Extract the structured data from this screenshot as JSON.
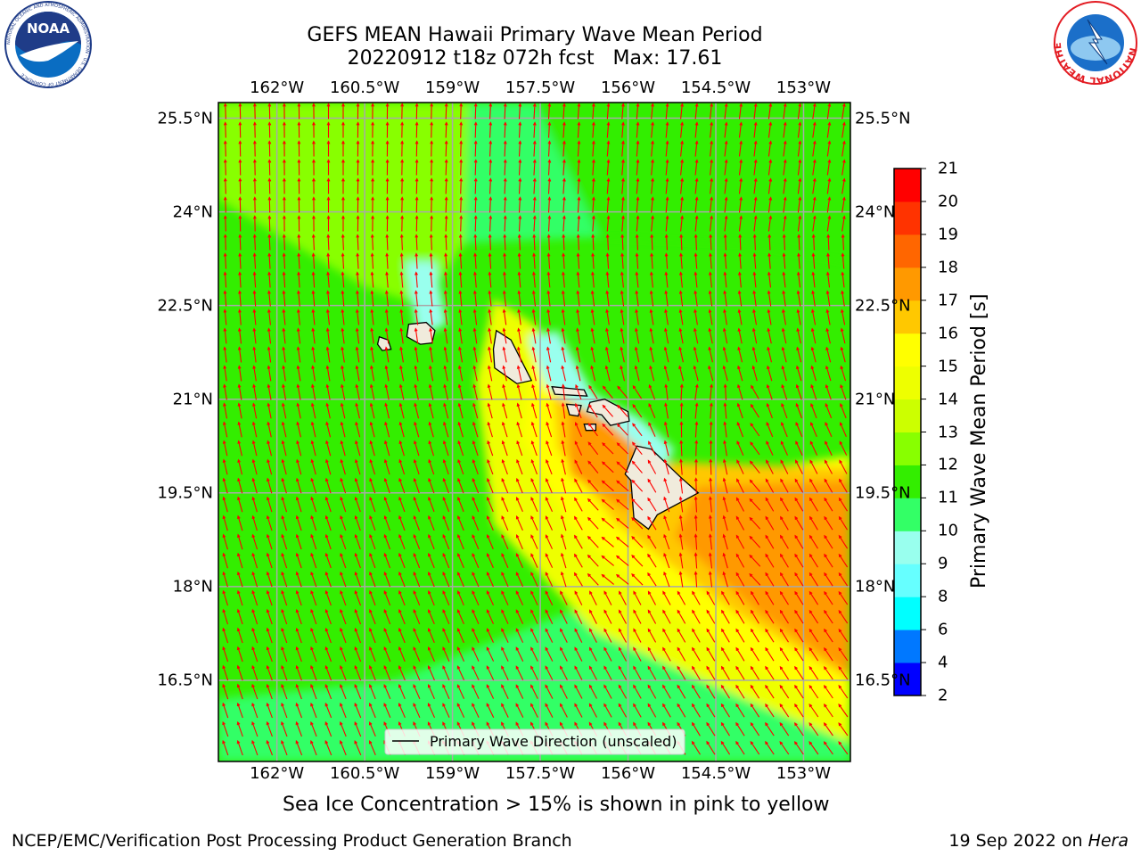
{
  "header": {
    "title_line1": "GEFS MEAN Hawaii Primary Wave Mean Period",
    "title_line2": "20220912 t18z 072h fcst   Max: 17.61"
  },
  "logos": {
    "left": "noara-logo",
    "left_text": "NOAA",
    "left_ring_text": "NATIONAL OCEANIC AND ATMOSPHERIC ADMINISTRATION · U.S. DEPARTMENT OF COMMERCE",
    "right": "nws-logo",
    "right_ring_text": "NATIONAL WEATHER SERVICE"
  },
  "map": {
    "lon_ticks": [
      "162°W",
      "160.5°W",
      "159°W",
      "157.5°W",
      "156°W",
      "154.5°W",
      "153°W"
    ],
    "lon_values": [
      -162,
      -160.5,
      -159,
      -157.5,
      -156,
      -154.5,
      -153
    ],
    "lat_ticks": [
      "25.5°N",
      "24°N",
      "22.5°N",
      "21°N",
      "19.5°N",
      "18°N",
      "16.5°N"
    ],
    "lat_values": [
      25.5,
      24,
      22.5,
      21,
      19.5,
      18,
      16.5
    ],
    "lon_range": [
      -163,
      -152.2
    ],
    "lat_range": [
      15.2,
      25.75
    ],
    "legend_label": "Primary Wave Direction (unscaled)",
    "arrow_color": "#ff0000",
    "land_color": "#f0ebdc",
    "grid_color": "#a9a9a9"
  },
  "colorbar": {
    "label": "Primary Wave Mean Period [s]",
    "ticks": [
      "2",
      "4",
      "6",
      "8",
      "9",
      "10",
      "11",
      "12",
      "13",
      "14",
      "15",
      "16",
      "17",
      "18",
      "19",
      "20",
      "21"
    ],
    "colors": [
      "#0000ff",
      "#0078ff",
      "#00ffff",
      "#66ffff",
      "#99ffee",
      "#33ff66",
      "#33ee00",
      "#88ff00",
      "#ccff00",
      "#eeff00",
      "#ffff00",
      "#ffc800",
      "#ff9900",
      "#ff6600",
      "#ff3300",
      "#ff0000"
    ]
  },
  "note": "Sea Ice Concentration > 15% is shown in pink to yellow",
  "footer": {
    "left": "NCEP/EMC/Verification Post Processing Product Generation Branch",
    "right_prefix": "19 Sep 2022 on ",
    "right_host": "Hera"
  }
}
